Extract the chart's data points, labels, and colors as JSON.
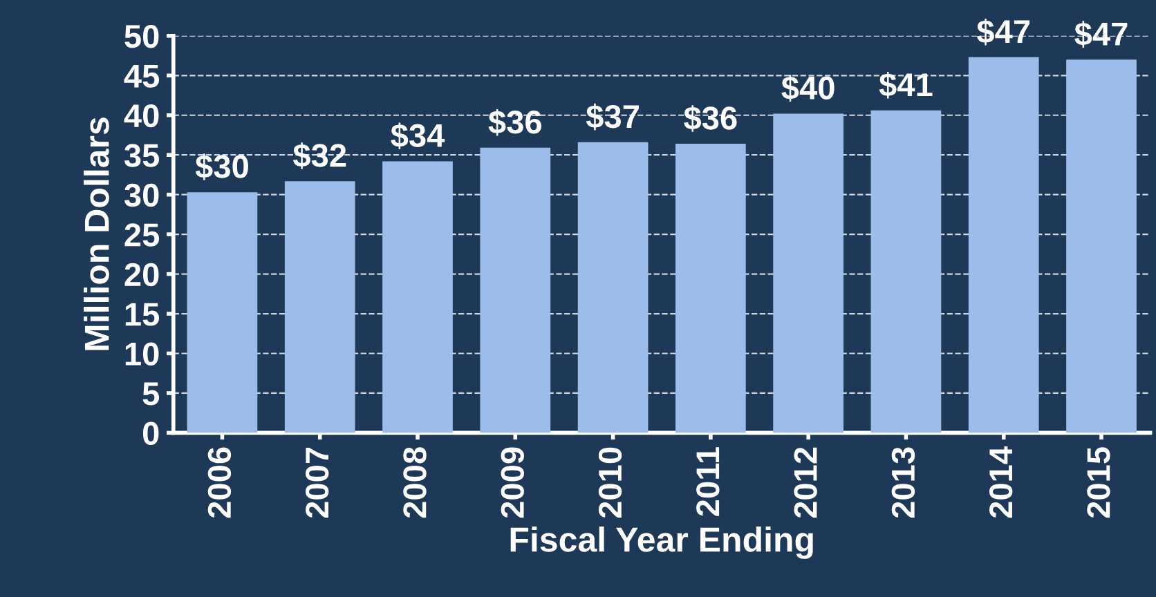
{
  "chart_data": {
    "type": "bar",
    "xlabel": "Fiscal Year Ending",
    "ylabel": "Million Dollars",
    "categories": [
      "2006",
      "2007",
      "2008",
      "2009",
      "2010",
      "2011",
      "2012",
      "2013",
      "2014",
      "2015"
    ],
    "values": [
      30.3,
      31.7,
      34.2,
      35.9,
      36.6,
      36.4,
      40.2,
      40.6,
      47.3,
      47.0
    ],
    "value_labels": [
      "$30",
      "$32",
      "$34",
      "$36",
      "$37",
      "$36",
      "$40",
      "$41",
      "$47",
      "$47"
    ],
    "color": "#9cbdea",
    "ylim": [
      0,
      50
    ],
    "yticks": [
      0,
      5,
      10,
      15,
      20,
      25,
      30,
      35,
      40,
      45,
      50
    ],
    "grid": "y"
  }
}
